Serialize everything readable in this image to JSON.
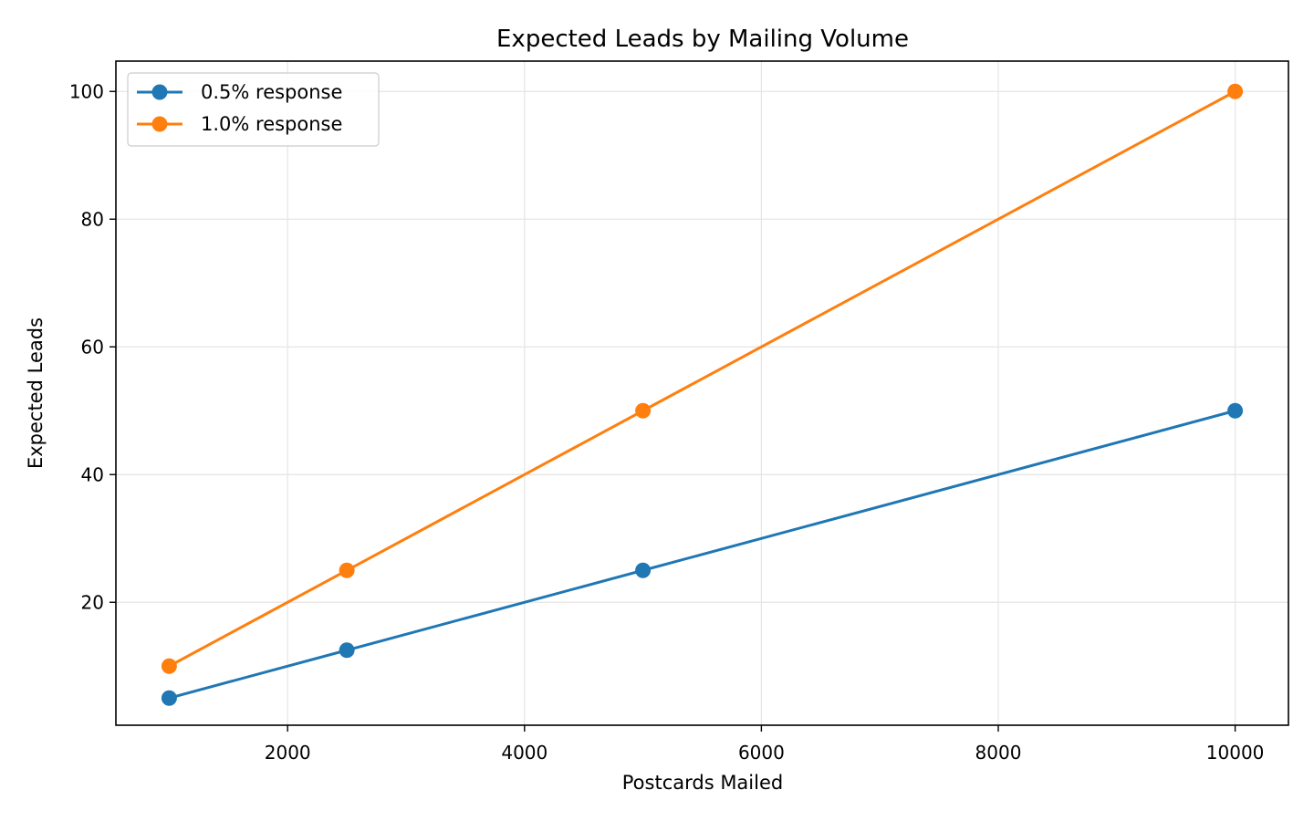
{
  "chart_data": {
    "type": "line",
    "title": "Expected Leads by Mailing Volume",
    "xlabel": "Postcards Mailed",
    "ylabel": "Expected Leads",
    "x": [
      1000,
      2500,
      5000,
      10000
    ],
    "xlim": [
      550,
      10450
    ],
    "ylim": [
      0.75,
      104.75
    ],
    "xticks": [
      2000,
      4000,
      6000,
      8000,
      10000
    ],
    "yticks": [
      20,
      40,
      60,
      80,
      100
    ],
    "grid": true,
    "legend_position": "top-left",
    "series": [
      {
        "name": "0.5% response",
        "values": [
          5,
          12.5,
          25,
          50
        ],
        "color": "#1f77b4"
      },
      {
        "name": "1.0% response",
        "values": [
          10,
          25,
          50,
          100
        ],
        "color": "#ff7f0e"
      }
    ]
  }
}
